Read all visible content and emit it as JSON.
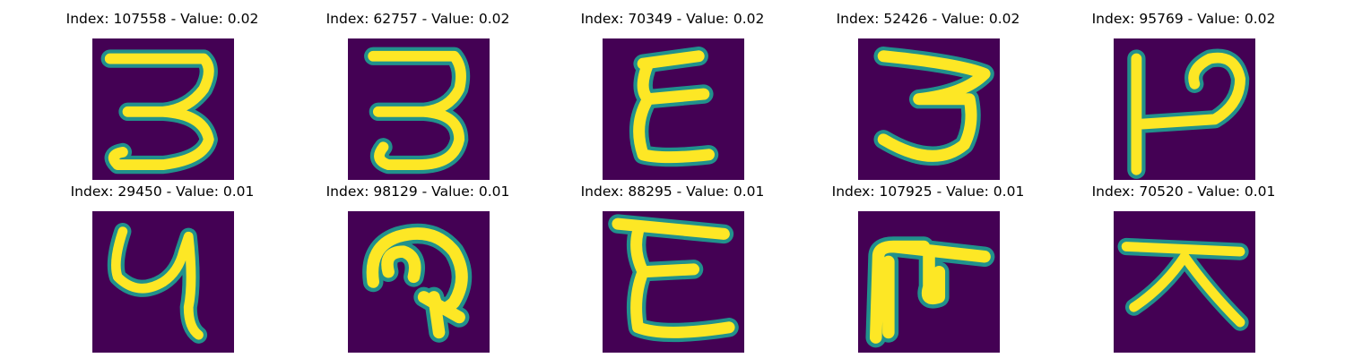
{
  "colors": {
    "background": "#440154",
    "edge_teal": "#21918c",
    "stroke_yellow": "#fde725",
    "mid_green": "#5ec962"
  },
  "panels": [
    {
      "title": "Index: 107558 - Value: 0.02",
      "glyph": "handwritten-3-bottom-loop"
    },
    {
      "title": "Index: 62757 - Value: 0.02",
      "glyph": "handwritten-3"
    },
    {
      "title": "Index: 70349 - Value: 0.02",
      "glyph": "handwritten-epsilon"
    },
    {
      "title": "Index: 52426 - Value: 0.02",
      "glyph": "handwritten-3-wide"
    },
    {
      "title": "Index: 95769 - Value: 0.02",
      "glyph": "handwritten-p-bar"
    },
    {
      "title": "Index: 29450 - Value: 0.01",
      "glyph": "handwritten-y"
    },
    {
      "title": "Index: 98129 - Value: 0.01",
      "glyph": "handwritten-curl-arrow"
    },
    {
      "title": "Index: 88295 - Value: 0.01",
      "glyph": "handwritten-epsilon-tall"
    },
    {
      "title": "Index: 107925 - Value: 0.01",
      "glyph": "handwritten-pi-hook"
    },
    {
      "title": "Index: 70520 - Value: 0.01",
      "glyph": "handwritten-tent"
    }
  ]
}
